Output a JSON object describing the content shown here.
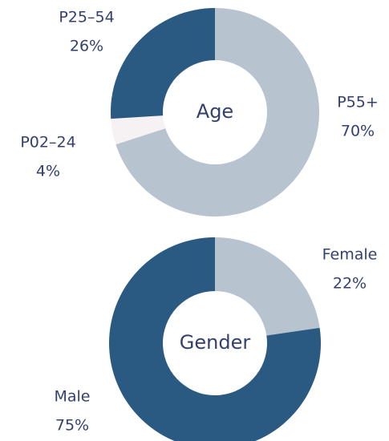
{
  "chart_data": [
    {
      "type": "donut",
      "title": "Age",
      "categories": [
        "P55+",
        "P02–24",
        "P25–54"
      ],
      "values": [
        70,
        4,
        26
      ],
      "value_labels": [
        "70%",
        "4%",
        "26%"
      ],
      "colors": [
        "#b7c4d0",
        "#f6f1f3",
        "#2a5a82"
      ]
    },
    {
      "type": "donut",
      "title": "Gender",
      "categories": [
        "Female",
        "Male"
      ],
      "values": [
        22,
        75
      ],
      "value_labels": [
        "22%",
        "75%"
      ],
      "colors": [
        "#b7c4d0",
        "#2a5a82"
      ]
    }
  ]
}
